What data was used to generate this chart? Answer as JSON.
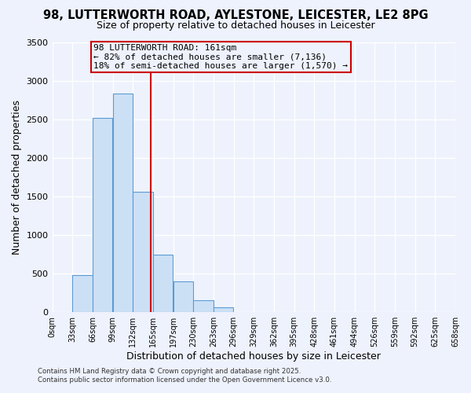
{
  "title": "98, LUTTERWORTH ROAD, AYLESTONE, LEICESTER, LE2 8PG",
  "subtitle": "Size of property relative to detached houses in Leicester",
  "xlabel": "Distribution of detached houses by size in Leicester",
  "ylabel": "Number of detached properties",
  "bin_edges": [
    0,
    33,
    66,
    99,
    132,
    165,
    198,
    231,
    264,
    297,
    330,
    363,
    396,
    429,
    462,
    495,
    528,
    561,
    594,
    627,
    660
  ],
  "bar_heights": [
    0,
    480,
    2520,
    2840,
    1560,
    750,
    400,
    155,
    60,
    0,
    0,
    0,
    0,
    0,
    0,
    0,
    0,
    0,
    0,
    0
  ],
  "bar_color": "#cce0f5",
  "bar_edgecolor": "#5b9bd5",
  "property_line_x": 161,
  "annotation_line1": "98 LUTTERWORTH ROAD: 161sqm",
  "annotation_line2": "← 82% of detached houses are smaller (7,136)",
  "annotation_line3": "18% of semi-detached houses are larger (1,570) →",
  "annotation_box_edgecolor": "#cc0000",
  "annotation_line_color": "#cc0000",
  "ylim": [
    0,
    3500
  ],
  "yticks": [
    0,
    500,
    1000,
    1500,
    2000,
    2500,
    3000,
    3500
  ],
  "xlim": [
    0,
    660
  ],
  "xtick_labels": [
    "0sqm",
    "33sqm",
    "66sqm",
    "99sqm",
    "132sqm",
    "165sqm",
    "197sqm",
    "230sqm",
    "263sqm",
    "296sqm",
    "329sqm",
    "362sqm",
    "395sqm",
    "428sqm",
    "461sqm",
    "494sqm",
    "526sqm",
    "559sqm",
    "592sqm",
    "625sqm",
    "658sqm"
  ],
  "xtick_positions": [
    0,
    33,
    66,
    99,
    132,
    165,
    198,
    231,
    264,
    297,
    330,
    363,
    396,
    429,
    462,
    495,
    528,
    561,
    594,
    627,
    660
  ],
  "background_color": "#eef2fc",
  "grid_color": "#ffffff",
  "footer1": "Contains HM Land Registry data © Crown copyright and database right 2025.",
  "footer2": "Contains public sector information licensed under the Open Government Licence v3.0.",
  "title_fontsize": 10.5,
  "subtitle_fontsize": 9,
  "annotation_fontsize": 8,
  "ylabel_text": "Number of detached properties"
}
